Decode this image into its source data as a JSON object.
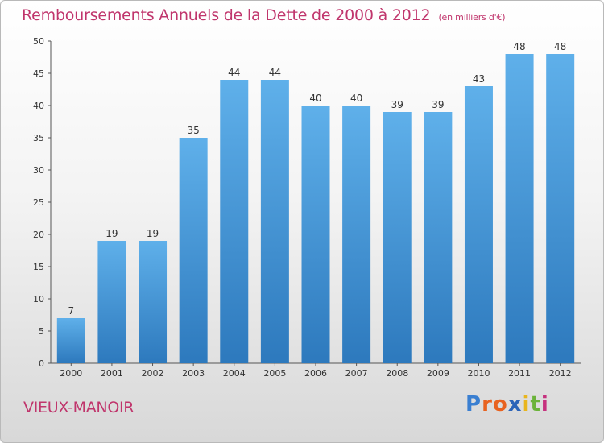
{
  "chart_data": {
    "type": "bar",
    "title": "Remboursements Annuels de la Dette de 2000 à 2012",
    "subtitle": "(en milliers d'€)",
    "categories": [
      "2000",
      "2001",
      "2002",
      "2003",
      "2004",
      "2005",
      "2006",
      "2007",
      "2008",
      "2009",
      "2010",
      "2011",
      "2012"
    ],
    "values": [
      7,
      19,
      19,
      35,
      44,
      44,
      40,
      40,
      39,
      39,
      43,
      48,
      48
    ],
    "data_labels": [
      "7",
      "19",
      "19",
      "35",
      "44",
      "44",
      "40",
      "40",
      "39",
      "39",
      "43",
      "48",
      "48"
    ],
    "ylim": [
      0,
      50
    ],
    "yticks": [
      0,
      5,
      10,
      15,
      20,
      25,
      30,
      35,
      40,
      45,
      50
    ],
    "grid": false,
    "bar_color": "#3f95d6"
  },
  "footer": {
    "place": "VIEUX-MANOIR",
    "logo": "Proxiti",
    "logo_colors": [
      "#3a7fd1",
      "#e8621f",
      "#e8621f",
      "#2b63b8",
      "#e9b51c",
      "#6bb33a",
      "#c6317e"
    ]
  }
}
